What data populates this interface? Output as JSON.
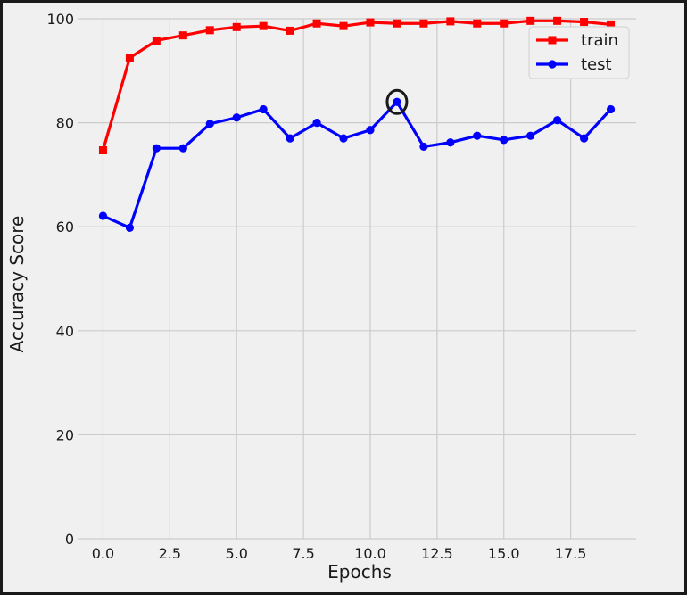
{
  "chart_data": {
    "type": "line",
    "xlabel": "Epochs",
    "ylabel": "Accuracy Score",
    "xlim": [
      -0.95,
      19.95
    ],
    "ylim": [
      0,
      100
    ],
    "x_ticks": [
      0.0,
      2.5,
      5.0,
      7.5,
      10.0,
      12.5,
      15.0,
      17.5
    ],
    "x_tick_labels": [
      "0.0",
      "2.5",
      "5.0",
      "7.5",
      "10.0",
      "12.5",
      "15.0",
      "17.5"
    ],
    "y_ticks": [
      0,
      20,
      40,
      60,
      80,
      100
    ],
    "y_tick_labels": [
      "0",
      "20",
      "40",
      "60",
      "80",
      "100"
    ],
    "grid": true,
    "legend_position": "top-right",
    "x": [
      0,
      1,
      2,
      3,
      4,
      5,
      6,
      7,
      8,
      9,
      10,
      11,
      12,
      13,
      14,
      15,
      16,
      17,
      18,
      19
    ],
    "series": [
      {
        "name": "train",
        "color": "#ff0000",
        "marker": "square",
        "values": [
          74.7,
          92.5,
          95.8,
          96.8,
          97.8,
          98.4,
          98.6,
          97.7,
          99.1,
          98.6,
          99.3,
          99.1,
          99.1,
          99.5,
          99.1,
          99.1,
          99.6,
          99.6,
          99.4,
          98.9
        ]
      },
      {
        "name": "test",
        "color": "#0000ff",
        "marker": "circle",
        "values": [
          62.1,
          59.8,
          75.1,
          75.1,
          79.8,
          81.0,
          82.6,
          77.0,
          80.0,
          77.0,
          78.6,
          84.0,
          75.4,
          76.2,
          77.5,
          76.7,
          77.5,
          80.5,
          77.0,
          82.6
        ]
      }
    ],
    "annotation": {
      "type": "circle",
      "x": 11,
      "y": 84.0,
      "color": "#1a1a1a"
    }
  }
}
